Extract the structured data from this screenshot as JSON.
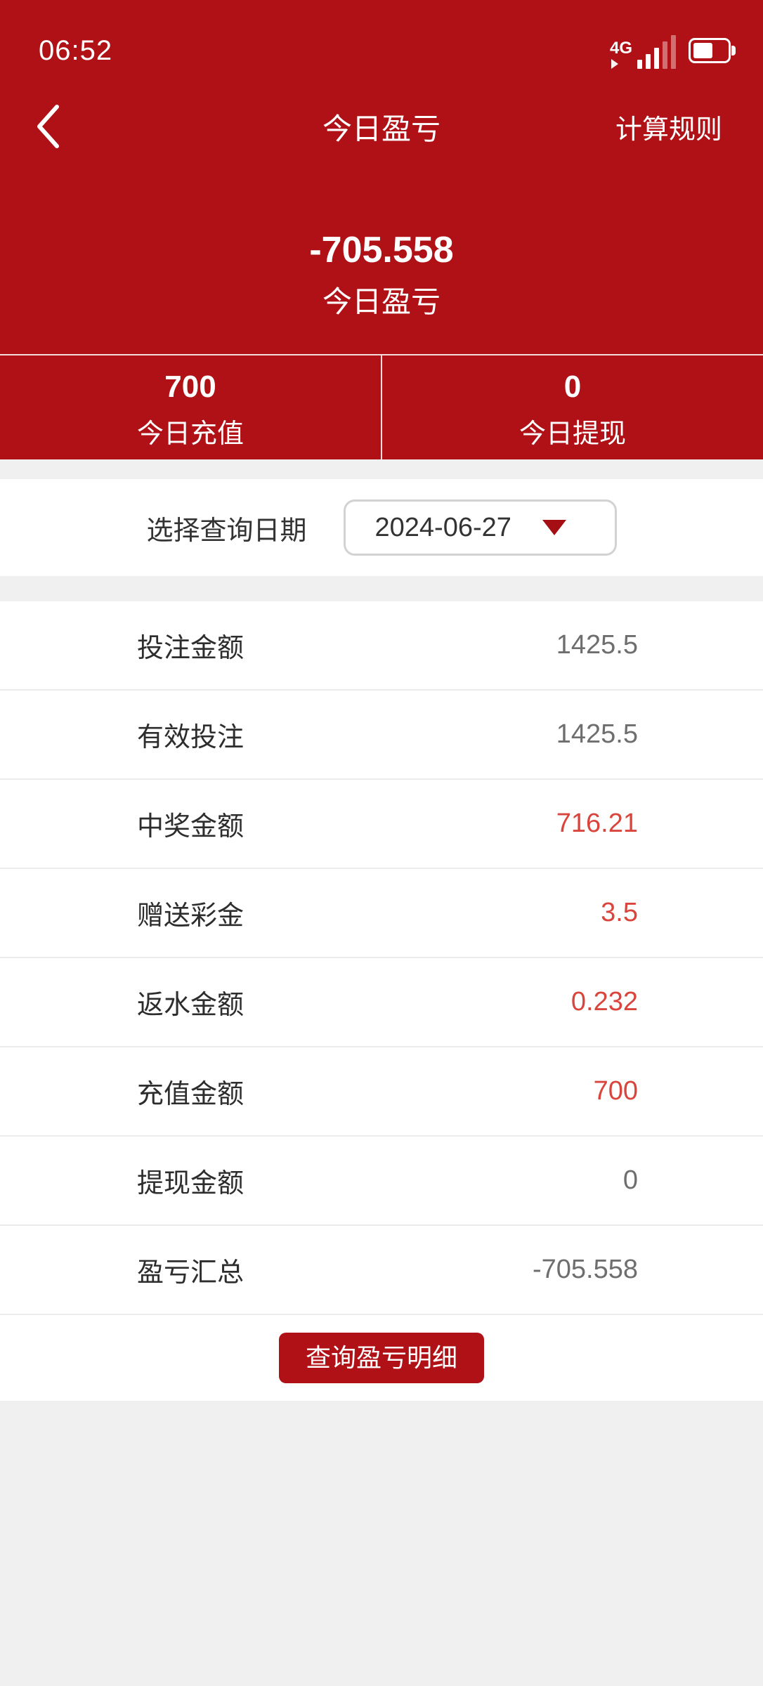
{
  "status_bar": {
    "time": "06:52",
    "network": "4G"
  },
  "header": {
    "title": "今日盈亏",
    "rules_label": "计算规则"
  },
  "summary": {
    "amount": "-705.558",
    "label": "今日盈亏"
  },
  "stats": [
    {
      "value": "700",
      "label": "今日充值"
    },
    {
      "value": "0",
      "label": "今日提现"
    }
  ],
  "date_picker": {
    "label": "选择查询日期",
    "value": "2024-06-27"
  },
  "table": {
    "rows": [
      {
        "label": "投注金额",
        "value": "1425.5",
        "highlight": false
      },
      {
        "label": "有效投注",
        "value": "1425.5",
        "highlight": false
      },
      {
        "label": "中奖金额",
        "value": "716.21",
        "highlight": true
      },
      {
        "label": "赠送彩金",
        "value": "3.5",
        "highlight": true
      },
      {
        "label": "返水金额",
        "value": "0.232",
        "highlight": true
      },
      {
        "label": "充值金额",
        "value": "700",
        "highlight": true
      },
      {
        "label": "提现金额",
        "value": "0",
        "highlight": false
      },
      {
        "label": "盈亏汇总",
        "value": "-705.558",
        "highlight": false
      }
    ]
  },
  "button": {
    "label": "查询盈亏明细"
  },
  "colors": {
    "primary_red": "#b01116",
    "value_red": "#d9453c",
    "caret_red": "#a50e13",
    "text_dark": "#2d2d2d",
    "text_gray": "#6e6e6e",
    "divider": "#ebebeb",
    "background_gray": "#f0f0f1"
  }
}
